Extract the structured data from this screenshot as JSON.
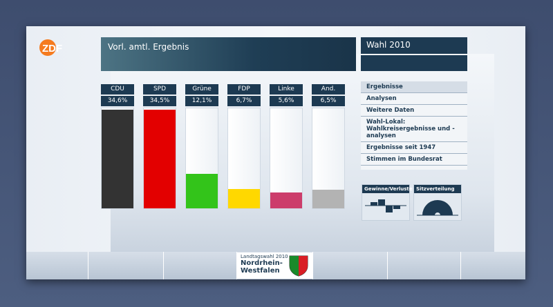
{
  "brand": "ZDF",
  "header": {
    "title": "Vorl. amtl. Ergebnis",
    "wahl_label": "Wahl",
    "wahl_year": "2010"
  },
  "chart_data": {
    "type": "bar",
    "categories": [
      "CDU",
      "SPD",
      "Grüne",
      "FDP",
      "Linke",
      "And."
    ],
    "values": [
      34.6,
      34.5,
      12.1,
      6.7,
      5.6,
      6.5
    ],
    "value_labels": [
      "34,6%",
      "34,5%",
      "12,1%",
      "6,7%",
      "5,6%",
      "6,5%"
    ],
    "colors": [
      "#333333",
      "#e30000",
      "#33c41a",
      "#ffd800",
      "#cc3d6b",
      "#b3b3b3"
    ],
    "ylim": [
      0,
      35
    ],
    "unit": "%"
  },
  "nav": {
    "items": [
      "Ergebnisse",
      "Analysen",
      "Weitere Daten",
      "Wahl-Lokal: Wahlkreisergebnisse und -analysen",
      "Ergebnisse seit 1947",
      "Stimmen im Bundesrat"
    ]
  },
  "widgets": {
    "gains": "Gewinne/Verluste",
    "seats": "Sitzverteilung"
  },
  "footer": {
    "line1": "Landtagswahl 2010",
    "line2": "Nordrhein-",
    "line3": "Westfalen"
  }
}
